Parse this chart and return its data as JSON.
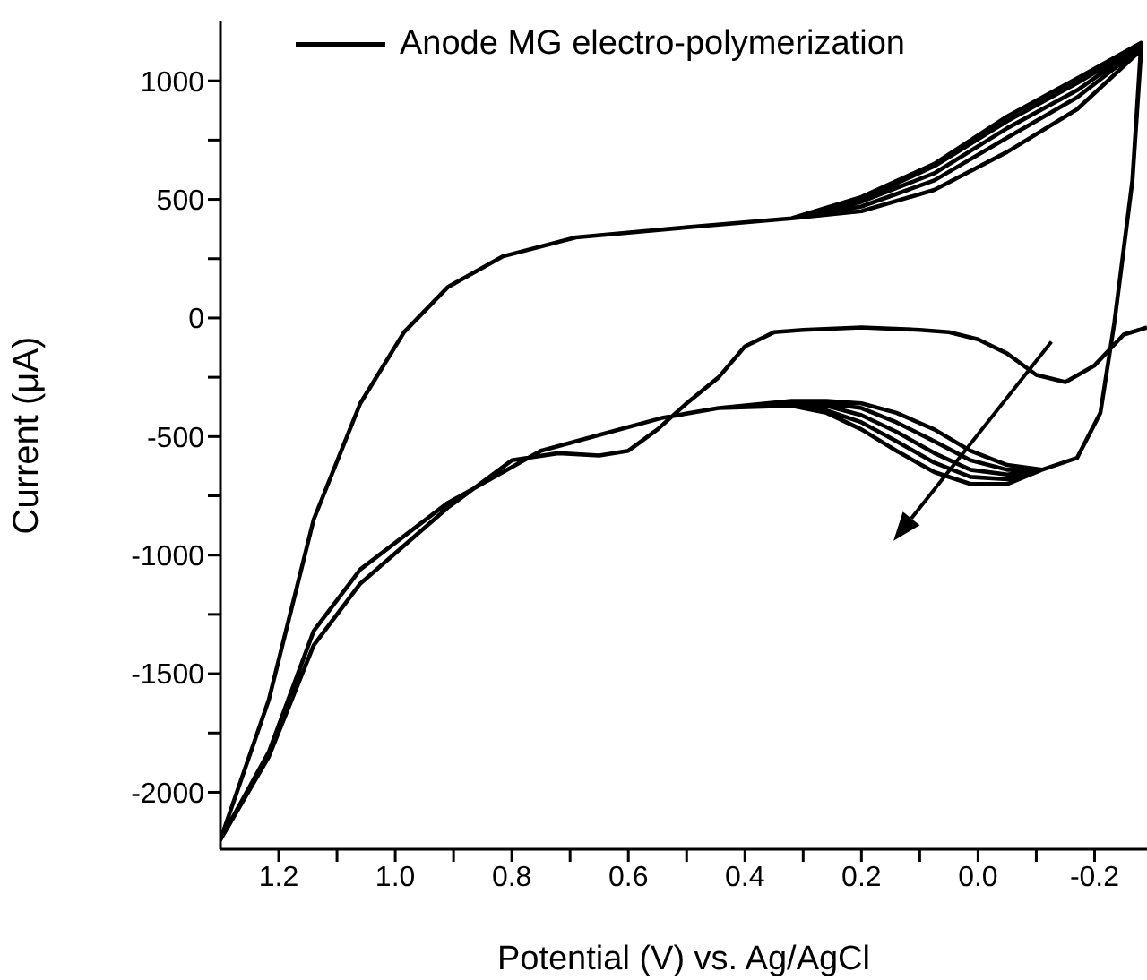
{
  "chart_data": {
    "type": "line",
    "xlabel": "Potential (V) vs. Ag/AgCl",
    "ylabel": "Current (μA)",
    "xlim": [
      1.3,
      -0.29
    ],
    "ylim": [
      -2240,
      1250
    ],
    "xticks": [
      {
        "value": 1.2,
        "label": "1.2"
      },
      {
        "value": 1.1,
        "label": null
      },
      {
        "value": 1.0,
        "label": "1.0"
      },
      {
        "value": 0.9,
        "label": null
      },
      {
        "value": 0.8,
        "label": "0.8"
      },
      {
        "value": 0.7,
        "label": null
      },
      {
        "value": 0.6,
        "label": "0.6"
      },
      {
        "value": 0.5,
        "label": null
      },
      {
        "value": 0.4,
        "label": "0.4"
      },
      {
        "value": 0.3,
        "label": null
      },
      {
        "value": 0.2,
        "label": "0.2"
      },
      {
        "value": 0.1,
        "label": null
      },
      {
        "value": 0.0,
        "label": "0.0"
      },
      {
        "value": -0.1,
        "label": null
      },
      {
        "value": -0.2,
        "label": "-0.2"
      }
    ],
    "yticks": [
      -2000,
      {
        "value": -1750,
        "label": null
      },
      -1500,
      {
        "value": -1250,
        "label": null
      },
      -1000,
      {
        "value": -750,
        "label": null
      },
      -500,
      {
        "value": -250,
        "label": null
      },
      0,
      {
        "value": 250,
        "label": null
      },
      500,
      {
        "value": 750,
        "label": null
      },
      1000
    ],
    "grid": false,
    "legend": "top left",
    "marker": "none",
    "line_style": "solid",
    "series": [
      {
        "name": "Anode MG electro-polymerization",
        "color": "#000000",
        "x": [
          -0.29,
          -0.25,
          -0.2,
          -0.15,
          -0.1,
          -0.05,
          0.0,
          0.05,
          0.1,
          0.2,
          0.3,
          0.35,
          0.4,
          0.445,
          0.5,
          0.55,
          0.6,
          0.65,
          0.72,
          0.8,
          0.91,
          1.06,
          1.14,
          1.217,
          1.3,
          1.217,
          1.14,
          1.06,
          0.985,
          0.91,
          0.815,
          0.69,
          0.51,
          0.32,
          0.2,
          0.075,
          -0.05,
          -0.17,
          -0.28,
          -0.265,
          -0.234,
          -0.21,
          -0.17,
          -0.11,
          -0.05,
          0.013,
          0.075,
          0.14,
          0.2,
          0.26,
          0.32,
          0.445,
          0.54,
          0.63,
          0.75,
          0.91,
          1.06,
          1.14,
          1.217,
          1.3,
          1.217,
          1.14,
          1.06,
          0.985,
          0.91,
          0.815,
          0.69,
          0.51,
          0.32,
          0.2,
          0.075,
          -0.05,
          -0.17,
          -0.28,
          -0.265,
          -0.234,
          -0.21,
          -0.17,
          -0.11,
          -0.05,
          0.013,
          0.075,
          0.14,
          0.2,
          0.26,
          0.32,
          0.445,
          0.54,
          0.63,
          0.75,
          0.91,
          1.06,
          1.14,
          1.217,
          1.3,
          1.217,
          1.14,
          1.06,
          0.985,
          0.91,
          0.815,
          0.69,
          0.51,
          0.32,
          0.2,
          0.075,
          -0.05,
          -0.17,
          -0.28,
          -0.265,
          -0.234,
          -0.21,
          -0.17,
          -0.11,
          -0.05,
          0.013,
          0.075,
          0.14,
          0.2,
          0.26,
          0.32,
          0.445,
          0.54,
          0.63,
          0.75,
          0.91,
          1.06,
          1.14,
          1.217,
          1.3,
          1.217,
          1.14,
          1.06,
          0.985,
          0.91,
          0.815,
          0.69,
          0.51,
          0.32,
          0.2,
          0.075,
          -0.05,
          -0.17,
          -0.28,
          -0.265,
          -0.234,
          -0.21,
          -0.17,
          -0.11,
          -0.05,
          0.013,
          0.075,
          0.14,
          0.2,
          0.26,
          0.32,
          0.445,
          0.54,
          0.63,
          0.75,
          0.91,
          1.06,
          1.14,
          1.217,
          1.3,
          1.217,
          1.14,
          1.06,
          0.985,
          0.91,
          0.815,
          0.69,
          0.51,
          0.32,
          0.2,
          0.075,
          -0.05,
          -0.17,
          -0.28,
          -0.265,
          -0.234,
          -0.21,
          -0.17,
          -0.11,
          -0.05,
          0.013,
          0.075,
          0.14,
          0.2,
          0.26,
          0.32,
          0.445,
          0.54,
          0.63,
          0.75,
          0.91,
          1.06,
          1.14,
          1.217,
          1.3
        ],
        "values": [
          -40,
          -70,
          -200,
          -270,
          -240,
          -150,
          -90,
          -60,
          -50,
          -40,
          -50,
          -60,
          -120,
          -250,
          -360,
          -470,
          -560,
          -580,
          -570,
          -600,
          -800,
          -1120,
          -1380,
          -1850,
          -2200,
          -1610,
          -850,
          -360,
          -60,
          130,
          260,
          340,
          380,
          420,
          450,
          540,
          700,
          880,
          1130,
          580,
          -20,
          -400,
          -590,
          -640,
          -620,
          -560,
          -470,
          -400,
          -360,
          -350,
          -350,
          -380,
          -420,
          -480,
          -560,
          -780,
          -1060,
          -1320,
          -1830,
          -2200,
          -1610,
          -850,
          -360,
          -60,
          130,
          260,
          340,
          380,
          420,
          470,
          580,
          760,
          930,
          1140,
          580,
          -20,
          -400,
          -590,
          -640,
          -640,
          -600,
          -520,
          -440,
          -380,
          -360,
          -360,
          -380,
          -420,
          -480,
          -560,
          -780,
          -1060,
          -1320,
          -1830,
          -2200,
          -1610,
          -850,
          -360,
          -60,
          130,
          260,
          340,
          380,
          420,
          490,
          610,
          800,
          960,
          1150,
          580,
          -20,
          -400,
          -590,
          -640,
          -660,
          -640,
          -570,
          -480,
          -410,
          -370,
          -360,
          -380,
          -420,
          -480,
          -560,
          -780,
          -1060,
          -1320,
          -1830,
          -2200,
          -1610,
          -850,
          -360,
          -60,
          130,
          260,
          340,
          380,
          420,
          500,
          640,
          830,
          990,
          1150,
          580,
          -20,
          -400,
          -590,
          -640,
          -680,
          -670,
          -610,
          -520,
          -440,
          -390,
          -370,
          -380,
          -420,
          -480,
          -560,
          -780,
          -1060,
          -1320,
          -1830,
          -2200,
          -1610,
          -850,
          -360,
          -60,
          130,
          260,
          340,
          380,
          420,
          510,
          650,
          850,
          1010,
          1160,
          580,
          -20,
          -400,
          -590,
          -640,
          -700,
          -700,
          -650,
          -560,
          -470,
          -400,
          -370,
          -380,
          -420,
          -480,
          -560,
          -780,
          -1060,
          -1320,
          -1830,
          -2200
        ]
      }
    ]
  }
}
